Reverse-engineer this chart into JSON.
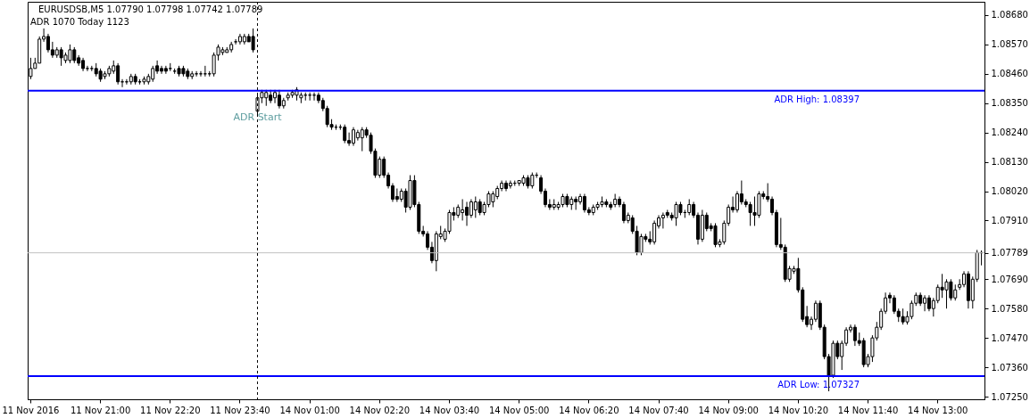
{
  "chart_data": {
    "type": "candlestick",
    "title": "EURUSDSB,M5  1.07790 1.07798 1.07742 1.07789",
    "subtitle": "ADR 1070  Today 1123",
    "categories": [
      "11 Nov 2016",
      null,
      null,
      null,
      null,
      null,
      null,
      null,
      null,
      null,
      null,
      null,
      null,
      null,
      null,
      null,
      "11 Nov 21:00",
      null,
      null,
      null,
      null,
      null,
      null,
      null,
      null,
      null,
      null,
      null,
      null,
      null,
      null,
      null,
      "11 Nov 22:20",
      null,
      null,
      null,
      null,
      null,
      null,
      null,
      null,
      null,
      null,
      null,
      null,
      null,
      null,
      null,
      "11 Nov 23:40",
      null,
      null,
      null,
      null,
      null,
      null,
      null,
      null,
      null,
      null,
      null,
      null,
      null,
      null,
      null,
      "14 Nov 01:00",
      null,
      null,
      null,
      null,
      null,
      null,
      null,
      null,
      null,
      null,
      null,
      null,
      null,
      null,
      null,
      "14 Nov 02:20",
      null,
      null,
      null,
      null,
      null,
      null,
      null,
      null,
      null,
      null,
      null,
      null,
      null,
      null,
      null,
      "14 Nov 03:40",
      null,
      null,
      null,
      null,
      null,
      null,
      null,
      null,
      null,
      null,
      null,
      null,
      null,
      null,
      null,
      "14 Nov 05:00",
      null,
      null,
      null,
      null,
      null,
      null,
      null,
      null,
      null,
      null,
      null,
      null,
      null,
      null,
      null,
      "14 Nov 06:20",
      null,
      null,
      null,
      null,
      null,
      null,
      null,
      null,
      null,
      null,
      null,
      null,
      null,
      null,
      null,
      "14 Nov 07:40",
      null,
      null,
      null,
      null,
      null,
      null,
      null,
      null,
      null,
      null,
      null,
      null,
      null,
      null,
      null,
      "14 Nov 09:00",
      null,
      null,
      null,
      null,
      null,
      null,
      null,
      null,
      null,
      null,
      null,
      null,
      null,
      null,
      null,
      "14 Nov 10:20",
      null,
      null,
      null,
      null,
      null,
      null,
      null,
      null,
      null,
      null,
      null,
      null,
      null,
      null,
      null,
      "14 Nov 11:40",
      null,
      null,
      null,
      null,
      null,
      null,
      null,
      null,
      null,
      null,
      null,
      null,
      null,
      null,
      null,
      "14 Nov 13:00",
      null,
      null,
      null,
      null,
      null,
      null,
      null,
      null,
      null,
      null
    ],
    "ohlc": [
      [
        1.0845,
        1.0852,
        1.0844,
        1.0848
      ],
      [
        1.0848,
        1.0852,
        1.0848,
        1.085
      ],
      [
        1.085,
        1.086,
        1.085,
        1.0859
      ],
      [
        1.0859,
        1.0863,
        1.0858,
        1.086
      ],
      [
        1.086,
        1.0861,
        1.0854,
        1.0855
      ],
      [
        1.0855,
        1.0858,
        1.0852,
        1.0853
      ],
      [
        1.0853,
        1.0856,
        1.0852,
        1.0855
      ],
      [
        1.0855,
        1.0856,
        1.0849,
        1.0852
      ],
      [
        1.0851,
        1.0854,
        1.085,
        1.0853
      ],
      [
        1.0851,
        1.0857,
        1.085,
        1.0855
      ],
      [
        1.0855,
        1.0856,
        1.085,
        1.0851
      ],
      [
        1.0852,
        1.0853,
        1.0849,
        1.085
      ],
      [
        1.0851,
        1.0852,
        1.0847,
        1.0848
      ],
      [
        1.0848,
        1.0849,
        1.0847,
        1.0848
      ],
      [
        1.0848,
        1.0849,
        1.0847,
        1.0848
      ],
      [
        1.0848,
        1.085,
        1.0845,
        1.0846
      ],
      [
        1.0847,
        1.0848,
        1.0843,
        1.0844
      ],
      [
        1.0845,
        1.0847,
        1.0844,
        1.0846
      ],
      [
        1.0846,
        1.0849,
        1.0845,
        1.0848
      ],
      [
        1.0847,
        1.0851,
        1.0846,
        1.0849
      ],
      [
        1.0849,
        1.085,
        1.0842,
        1.0843
      ],
      [
        1.0843,
        1.0844,
        1.0841,
        1.0843
      ],
      [
        1.0843,
        1.0844,
        1.0842,
        1.0843
      ],
      [
        1.0843,
        1.0846,
        1.0842,
        1.0845
      ],
      [
        1.0845,
        1.0846,
        1.0842,
        1.0843
      ],
      [
        1.0843,
        1.0844,
        1.0842,
        1.0843
      ],
      [
        1.0843,
        1.0845,
        1.0842,
        1.0844
      ],
      [
        1.0843,
        1.0846,
        1.0842,
        1.0845
      ],
      [
        1.0844,
        1.0849,
        1.0843,
        1.0848
      ],
      [
        1.0849,
        1.0851,
        1.0846,
        1.0847
      ],
      [
        1.0848,
        1.0849,
        1.0846,
        1.0847
      ],
      [
        1.0848,
        1.0849,
        1.0846,
        1.0847
      ],
      [
        1.0848,
        1.085,
        1.0847,
        1.0848
      ],
      [
        1.0847,
        1.0848,
        1.0846,
        1.0847
      ],
      [
        1.0848,
        1.0849,
        1.0845,
        1.0846
      ],
      [
        1.0848,
        1.0849,
        1.0845,
        1.0846
      ],
      [
        1.0847,
        1.0848,
        1.0844,
        1.0845
      ],
      [
        1.0845,
        1.0847,
        1.0844,
        1.0846
      ],
      [
        1.0846,
        1.0847,
        1.0845,
        1.0846
      ],
      [
        1.0846,
        1.0847,
        1.0845,
        1.0846
      ],
      [
        1.0846,
        1.0849,
        1.0845,
        1.0846
      ],
      [
        1.0846,
        1.0847,
        1.0845,
        1.0846
      ],
      [
        1.0846,
        1.0854,
        1.0845,
        1.0853
      ],
      [
        1.0853,
        1.0857,
        1.0851,
        1.0856
      ],
      [
        1.0854,
        1.0856,
        1.0853,
        1.0855
      ],
      [
        1.0854,
        1.0856,
        1.0854,
        1.0855
      ],
      [
        1.0855,
        1.0858,
        1.0854,
        1.0857
      ],
      [
        1.0858,
        1.0859,
        1.0857,
        1.0858
      ],
      [
        1.0858,
        1.0861,
        1.0857,
        1.086
      ],
      [
        1.0858,
        1.0861,
        1.0857,
        1.086
      ],
      [
        1.086,
        1.0861,
        1.0858,
        1.0858
      ],
      [
        1.086,
        1.0863,
        1.0854,
        1.0855
      ],
      [
        1.0832,
        1.0838,
        1.083,
        1.0837
      ],
      [
        1.0837,
        1.084,
        1.0835,
        1.0839
      ],
      [
        1.0837,
        1.084,
        1.0834,
        1.0839
      ],
      [
        1.0838,
        1.084,
        1.0835,
        1.0836
      ],
      [
        1.0837,
        1.084,
        1.0835,
        1.0839
      ],
      [
        1.0838,
        1.084,
        1.0833,
        1.0834
      ],
      [
        1.0834,
        1.0837,
        1.0833,
        1.0836
      ],
      [
        1.0837,
        1.0839,
        1.0836,
        1.0838
      ],
      [
        1.0838,
        1.084,
        1.0837,
        1.0839
      ],
      [
        1.0838,
        1.0841,
        1.0836,
        1.084
      ],
      [
        1.0837,
        1.0839,
        1.0835,
        1.0838
      ],
      [
        1.0838,
        1.0839,
        1.0836,
        1.0838
      ],
      [
        1.0838,
        1.0839,
        1.0836,
        1.0838
      ],
      [
        1.0838,
        1.0839,
        1.0836,
        1.0838
      ],
      [
        1.0838,
        1.0839,
        1.0835,
        1.0836
      ],
      [
        1.0836,
        1.0837,
        1.0832,
        1.0833
      ],
      [
        1.0833,
        1.0834,
        1.0826,
        1.0827
      ],
      [
        1.0827,
        1.0829,
        1.0825,
        1.0826
      ],
      [
        1.0826,
        1.0827,
        1.0825,
        1.0826
      ],
      [
        1.0826,
        1.0827,
        1.0825,
        1.0826
      ],
      [
        1.0826,
        1.0827,
        1.082,
        1.0821
      ],
      [
        1.0821,
        1.0824,
        1.0819,
        1.082
      ],
      [
        1.082,
        1.0826,
        1.0819,
        1.0825
      ],
      [
        1.0822,
        1.0825,
        1.0821,
        1.0824
      ],
      [
        1.0822,
        1.0826,
        1.0817,
        1.0825
      ],
      [
        1.0825,
        1.0826,
        1.0822,
        1.0823
      ],
      [
        1.0823,
        1.0824,
        1.0816,
        1.0817
      ],
      [
        1.0817,
        1.0818,
        1.0807,
        1.0808
      ],
      [
        1.0808,
        1.0815,
        1.0807,
        1.0814
      ],
      [
        1.0814,
        1.0815,
        1.0807,
        1.0808
      ],
      [
        1.0808,
        1.0809,
        1.0803,
        1.0804
      ],
      [
        1.0804,
        1.0805,
        1.0798,
        1.0799
      ],
      [
        1.08,
        1.0803,
        1.0798,
        1.0799
      ],
      [
        1.0799,
        1.0803,
        1.0798,
        1.0802
      ],
      [
        1.0802,
        1.0803,
        1.0794,
        1.0796
      ],
      [
        1.0796,
        1.0808,
        1.0795,
        1.0806
      ],
      [
        1.0806,
        1.0808,
        1.0796,
        1.0797
      ],
      [
        1.0797,
        1.0798,
        1.0786,
        1.0787
      ],
      [
        1.0787,
        1.0789,
        1.0785,
        1.0786
      ],
      [
        1.0786,
        1.0787,
        1.078,
        1.0781
      ],
      [
        1.0781,
        1.0783,
        1.0775,
        1.0776
      ],
      [
        1.0776,
        1.0787,
        1.0772,
        1.0786
      ],
      [
        1.0785,
        1.0789,
        1.0784,
        1.0786
      ],
      [
        1.0784,
        1.0788,
        1.0783,
        1.0787
      ],
      [
        1.0787,
        1.0795,
        1.0786,
        1.0794
      ],
      [
        1.0794,
        1.0796,
        1.0791,
        1.0793
      ],
      [
        1.0793,
        1.0797,
        1.0792,
        1.0796
      ],
      [
        1.0794,
        1.0799,
        1.0791,
        1.0795
      ],
      [
        1.0796,
        1.0798,
        1.0789,
        1.0793
      ],
      [
        1.0793,
        1.0799,
        1.0792,
        1.0798
      ],
      [
        1.0795,
        1.08,
        1.0792,
        1.0798
      ],
      [
        1.0798,
        1.0799,
        1.0793,
        1.0794
      ],
      [
        1.0794,
        1.0798,
        1.0793,
        1.0797
      ],
      [
        1.0797,
        1.0802,
        1.0796,
        1.0801
      ],
      [
        1.0798,
        1.0802,
        1.0796,
        1.0801
      ],
      [
        1.08,
        1.0804,
        1.0799,
        1.0803
      ],
      [
        1.0803,
        1.0806,
        1.0802,
        1.0805
      ],
      [
        1.0805,
        1.0806,
        1.0802,
        1.0803
      ],
      [
        1.0804,
        1.0806,
        1.0803,
        1.0805
      ],
      [
        1.0805,
        1.0806,
        1.0804,
        1.0805
      ],
      [
        1.0805,
        1.0806,
        1.0804,
        1.0806
      ],
      [
        1.0805,
        1.0808,
        1.0804,
        1.0807
      ],
      [
        1.0807,
        1.0808,
        1.0803,
        1.0804
      ],
      [
        1.0804,
        1.0809,
        1.0803,
        1.0808
      ],
      [
        1.0808,
        1.0809,
        1.0807,
        1.0808
      ],
      [
        1.0807,
        1.0808,
        1.0801,
        1.0802
      ],
      [
        1.0802,
        1.0803,
        1.0796,
        1.0797
      ],
      [
        1.0797,
        1.0799,
        1.0795,
        1.0796
      ],
      [
        1.0796,
        1.0799,
        1.0795,
        1.0797
      ],
      [
        1.0796,
        1.0798,
        1.0795,
        1.0797
      ],
      [
        1.0797,
        1.0801,
        1.0796,
        1.08
      ],
      [
        1.08,
        1.0801,
        1.0796,
        1.0797
      ],
      [
        1.0797,
        1.08,
        1.0795,
        1.0799
      ],
      [
        1.0799,
        1.08,
        1.0795,
        1.0798
      ],
      [
        1.0798,
        1.0801,
        1.0797,
        1.08
      ],
      [
        1.08,
        1.0801,
        1.0794,
        1.0795
      ],
      [
        1.0795,
        1.0796,
        1.0793,
        1.0794
      ],
      [
        1.0794,
        1.0797,
        1.0793,
        1.0796
      ],
      [
        1.0796,
        1.0798,
        1.0795,
        1.0797
      ],
      [
        1.0797,
        1.08,
        1.0796,
        1.0798
      ],
      [
        1.0798,
        1.0799,
        1.0796,
        1.0797
      ],
      [
        1.0797,
        1.0798,
        1.0795,
        1.0796
      ],
      [
        1.0797,
        1.0801,
        1.0796,
        1.0799
      ],
      [
        1.0799,
        1.08,
        1.0796,
        1.0797
      ],
      [
        1.0797,
        1.0798,
        1.079,
        1.0791
      ],
      [
        1.0791,
        1.0794,
        1.079,
        1.0793
      ],
      [
        1.0792,
        1.0793,
        1.0786,
        1.0787
      ],
      [
        1.0787,
        1.0789,
        1.0778,
        1.0779
      ],
      [
        1.0779,
        1.0786,
        1.0778,
        1.0785
      ],
      [
        1.0785,
        1.0786,
        1.0783,
        1.0784
      ],
      [
        1.0784,
        1.0787,
        1.0782,
        1.0783
      ],
      [
        1.0783,
        1.0791,
        1.0782,
        1.079
      ],
      [
        1.0789,
        1.0793,
        1.0788,
        1.0792
      ],
      [
        1.0792,
        1.0794,
        1.0788,
        1.0793
      ],
      [
        1.0794,
        1.0795,
        1.0792,
        1.0793
      ],
      [
        1.0793,
        1.0794,
        1.0791,
        1.0792
      ],
      [
        1.0792,
        1.0798,
        1.0789,
        1.0797
      ],
      [
        1.0797,
        1.0798,
        1.0793,
        1.0794
      ],
      [
        1.0794,
        1.0795,
        1.0792,
        1.0794
      ],
      [
        1.0794,
        1.0799,
        1.0793,
        1.0797
      ],
      [
        1.0797,
        1.0798,
        1.0792,
        1.0793
      ],
      [
        1.0793,
        1.0794,
        1.0782,
        1.0784
      ],
      [
        1.0784,
        1.0795,
        1.0783,
        1.0793
      ],
      [
        1.0793,
        1.0794,
        1.0787,
        1.0788
      ],
      [
        1.0789,
        1.079,
        1.0787,
        1.0788
      ],
      [
        1.0789,
        1.079,
        1.0781,
        1.0782
      ],
      [
        1.0782,
        1.0784,
        1.0781,
        1.0783
      ],
      [
        1.0783,
        1.0791,
        1.0782,
        1.079
      ],
      [
        1.079,
        1.0797,
        1.0789,
        1.0796
      ],
      [
        1.0796,
        1.08,
        1.0794,
        1.0795
      ],
      [
        1.0795,
        1.0802,
        1.0794,
        1.0801
      ],
      [
        1.0801,
        1.0806,
        1.0797,
        1.0798
      ],
      [
        1.0798,
        1.0799,
        1.0796,
        1.0797
      ],
      [
        1.0797,
        1.0798,
        1.0789,
        1.0794
      ],
      [
        1.0794,
        1.08,
        1.0789,
        1.0793
      ],
      [
        1.0793,
        1.0802,
        1.0792,
        1.0801
      ],
      [
        1.0801,
        1.0802,
        1.0799,
        1.08
      ],
      [
        1.08,
        1.0805,
        1.0798,
        1.0799
      ],
      [
        1.0799,
        1.08,
        1.0793,
        1.0794
      ],
      [
        1.0794,
        1.0795,
        1.0781,
        1.0782
      ],
      [
        1.0782,
        1.0792,
        1.078,
        1.0781
      ],
      [
        1.0781,
        1.0782,
        1.0768,
        1.0769
      ],
      [
        1.0769,
        1.0774,
        1.0768,
        1.0773
      ],
      [
        1.0772,
        1.0774,
        1.0771,
        1.0773
      ],
      [
        1.0773,
        1.0777,
        1.0764,
        1.0765
      ],
      [
        1.0765,
        1.0766,
        1.0753,
        1.0754
      ],
      [
        1.0755,
        1.0759,
        1.0751,
        1.0752
      ],
      [
        1.0752,
        1.0755,
        1.075,
        1.0754
      ],
      [
        1.0754,
        1.0761,
        1.0753,
        1.076
      ],
      [
        1.076,
        1.0761,
        1.075,
        1.0751
      ],
      [
        1.0751,
        1.0752,
        1.0739,
        1.074
      ],
      [
        1.074,
        1.0741,
        1.0727,
        1.0733
      ],
      [
        1.0733,
        1.0746,
        1.0732,
        1.0745
      ],
      [
        1.0745,
        1.0746,
        1.0739,
        1.074
      ],
      [
        1.074,
        1.0746,
        1.0735,
        1.0745
      ],
      [
        1.0745,
        1.0751,
        1.0744,
        1.075
      ],
      [
        1.075,
        1.0752,
        1.0749,
        1.0751
      ],
      [
        1.0751,
        1.0752,
        1.0744,
        1.0746
      ],
      [
        1.0746,
        1.0749,
        1.0744,
        1.0745
      ],
      [
        1.0746,
        1.0747,
        1.0736,
        1.0737
      ],
      [
        1.0737,
        1.0741,
        1.0736,
        1.074
      ],
      [
        1.074,
        1.0748,
        1.0738,
        1.0747
      ],
      [
        1.0747,
        1.0753,
        1.0746,
        1.0751
      ],
      [
        1.0751,
        1.0758,
        1.075,
        1.0757
      ],
      [
        1.0757,
        1.0764,
        1.0756,
        1.0762
      ],
      [
        1.0763,
        1.0764,
        1.076,
        1.0762
      ],
      [
        1.0762,
        1.0763,
        1.0756,
        1.0757
      ],
      [
        1.0757,
        1.0758,
        1.0753,
        1.0755
      ],
      [
        1.0755,
        1.0758,
        1.0752,
        1.0753
      ],
      [
        1.0753,
        1.0757,
        1.0752,
        1.0755
      ],
      [
        1.0755,
        1.0761,
        1.0754,
        1.076
      ],
      [
        1.076,
        1.0764,
        1.0759,
        1.0763
      ],
      [
        1.0763,
        1.0764,
        1.0759,
        1.076
      ],
      [
        1.076,
        1.0763,
        1.0757,
        1.0762
      ],
      [
        1.0762,
        1.0763,
        1.0757,
        1.0758
      ],
      [
        1.0758,
        1.0762,
        1.0755,
        1.0761
      ],
      [
        1.0761,
        1.0767,
        1.076,
        1.0766
      ],
      [
        1.0766,
        1.0771,
        1.0762,
        1.0765
      ],
      [
        1.0765,
        1.0769,
        1.0758,
        1.0768
      ],
      [
        1.0768,
        1.0769,
        1.0761,
        1.0762
      ],
      [
        1.0762,
        1.0767,
        1.0761,
        1.0765
      ],
      [
        1.0766,
        1.0769,
        1.0765,
        1.0767
      ],
      [
        1.0767,
        1.0772,
        1.0766,
        1.0771
      ],
      [
        1.0771,
        1.0772,
        1.0758,
        1.0761
      ],
      [
        1.0761,
        1.077,
        1.0758,
        1.0769
      ],
      [
        1.0769,
        1.078,
        1.0768,
        1.0779
      ],
      [
        1.0779,
        1.07798,
        1.07742,
        1.07789
      ]
    ],
    "ylim": [
      1.0724,
      1.0873
    ],
    "yticks": [
      {
        "value": 1.0725,
        "label": "1.07250"
      },
      {
        "value": 1.0736,
        "label": "1.07360"
      },
      {
        "value": 1.0747,
        "label": "1.07470"
      },
      {
        "value": 1.0758,
        "label": "1.07580"
      },
      {
        "value": 1.0769,
        "label": "1.07690"
      },
      {
        "value": 1.07789,
        "label": "1.07789"
      },
      {
        "value": 1.0791,
        "label": "1.07910"
      },
      {
        "value": 1.0802,
        "label": "1.08020"
      },
      {
        "value": 1.0813,
        "label": "1.08130"
      },
      {
        "value": 1.0824,
        "label": "1.08240"
      },
      {
        "value": 1.0835,
        "label": "1.08350"
      },
      {
        "value": 1.0846,
        "label": "1.08460"
      },
      {
        "value": 1.0857,
        "label": "1.08570"
      },
      {
        "value": 1.0868,
        "label": "1.08680"
      }
    ],
    "ref_lines": [
      {
        "axis": "y",
        "value": 1.08397,
        "label": "ADR High: 1.08397",
        "color": "#0000ff",
        "line_style": "solid"
      },
      {
        "axis": "y",
        "value": 1.07327,
        "label": "ADR Low: 1.07327",
        "color": "#0000ff",
        "line_style": "solid"
      },
      {
        "axis": "y",
        "value": 1.07789,
        "color": "#c0c0c0",
        "line_style": "solid"
      }
    ],
    "annotations": [
      "ADR Start"
    ]
  }
}
